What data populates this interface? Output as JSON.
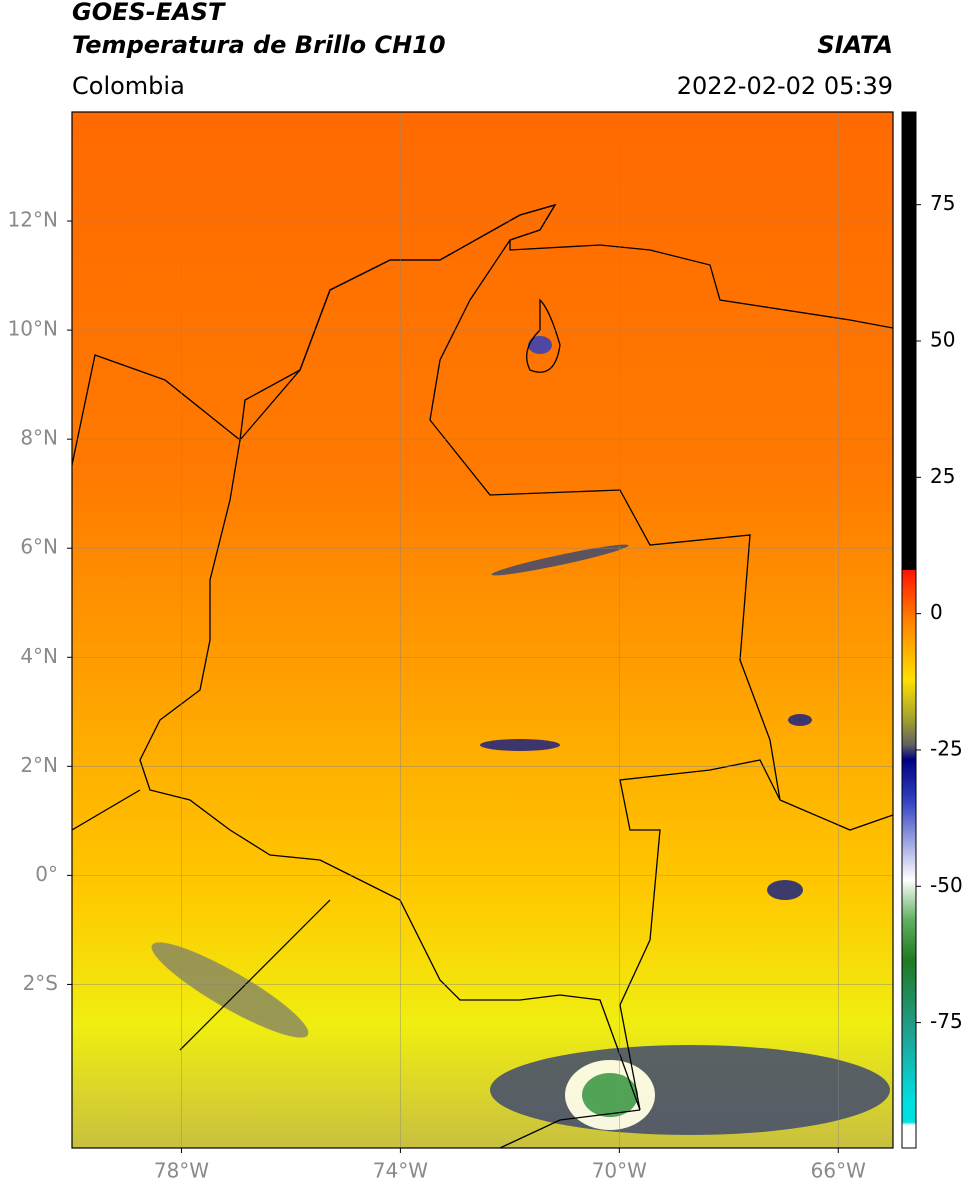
{
  "header": {
    "title": "GOES-EAST",
    "subtitle": "Temperatura de Brillo CH10",
    "region": "Colombia",
    "source": "SIATA",
    "datetime": "2022-02-02 05:39"
  },
  "map": {
    "lonlim": [
      -80,
      -65
    ],
    "latlim": [
      -5,
      14
    ],
    "lon_ticks": [
      {
        "value": -78,
        "label": "78°W"
      },
      {
        "value": -74,
        "label": "74°W"
      },
      {
        "value": -70,
        "label": "70°W"
      },
      {
        "value": -66,
        "label": "66°W"
      }
    ],
    "lat_ticks": [
      {
        "value": 12,
        "label": "12°N"
      },
      {
        "value": 10,
        "label": "10°N"
      },
      {
        "value": 8,
        "label": "8°N"
      },
      {
        "value": 6,
        "label": "6°N"
      },
      {
        "value": 4,
        "label": "4°N"
      },
      {
        "value": 2,
        "label": "2°N"
      },
      {
        "value": 0,
        "label": "0°"
      },
      {
        "value": -2,
        "label": "2°S"
      }
    ],
    "grid": true
  },
  "colorbar": {
    "lim": [
      -98,
      92
    ],
    "ticks": [
      75,
      50,
      25,
      0,
      -25,
      -50,
      -75
    ]
  }
}
